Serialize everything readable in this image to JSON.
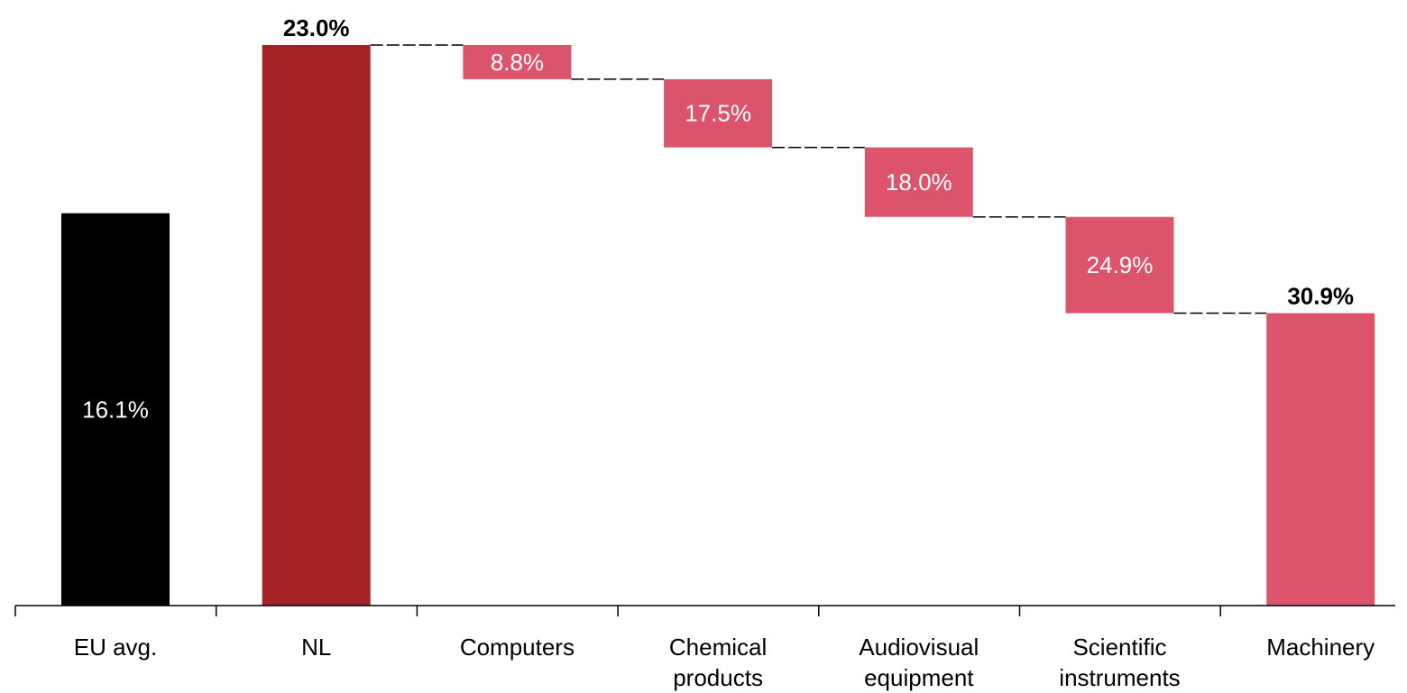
{
  "chart_data": {
    "type": "bar",
    "subtype": "waterfall",
    "title": "",
    "xlabel": "",
    "ylabel": "",
    "grid": false,
    "legend": "none",
    "categories": [
      [
        "EU avg."
      ],
      [
        "NL"
      ],
      [
        "Computers"
      ],
      [
        "Chemical",
        "products"
      ],
      [
        "Audiovisual",
        "equipment"
      ],
      [
        "Scientific",
        "instruments"
      ],
      [
        "Machinery"
      ]
    ],
    "bars": [
      {
        "category": "EU avg.",
        "base": 0,
        "value": 16.1,
        "label": "16.1%",
        "label_style": "inside",
        "color": "#000000",
        "kind": "total"
      },
      {
        "category": "NL",
        "base": 0,
        "value": 23.0,
        "label": "23.0%",
        "label_style": "outside",
        "color": "#a32025",
        "kind": "total"
      },
      {
        "category": "Computers",
        "base": 21.6,
        "value": 1.4,
        "label": "8.8%",
        "label_style": "inside",
        "color": "#dc546b",
        "kind": "decrease"
      },
      {
        "category": "Chemical products",
        "base": 18.8,
        "value": 2.8,
        "label": "17.5%",
        "label_style": "inside",
        "color": "#dc546b",
        "kind": "decrease"
      },
      {
        "category": "Audiovisual equipment",
        "base": 15.95,
        "value": 2.85,
        "label": "18.0%",
        "label_style": "inside",
        "color": "#dc546b",
        "kind": "decrease"
      },
      {
        "category": "Scientific instruments",
        "base": 12.0,
        "value": 3.95,
        "label": "24.9%",
        "label_style": "inside",
        "color": "#dc546b",
        "kind": "decrease"
      },
      {
        "category": "Machinery",
        "base": 0,
        "value": 12.0,
        "label": "30.9%",
        "label_style": "outside",
        "color": "#dc546b",
        "kind": "total"
      }
    ],
    "ylim": [
      0,
      23.0
    ],
    "connector_style": "dashed"
  }
}
